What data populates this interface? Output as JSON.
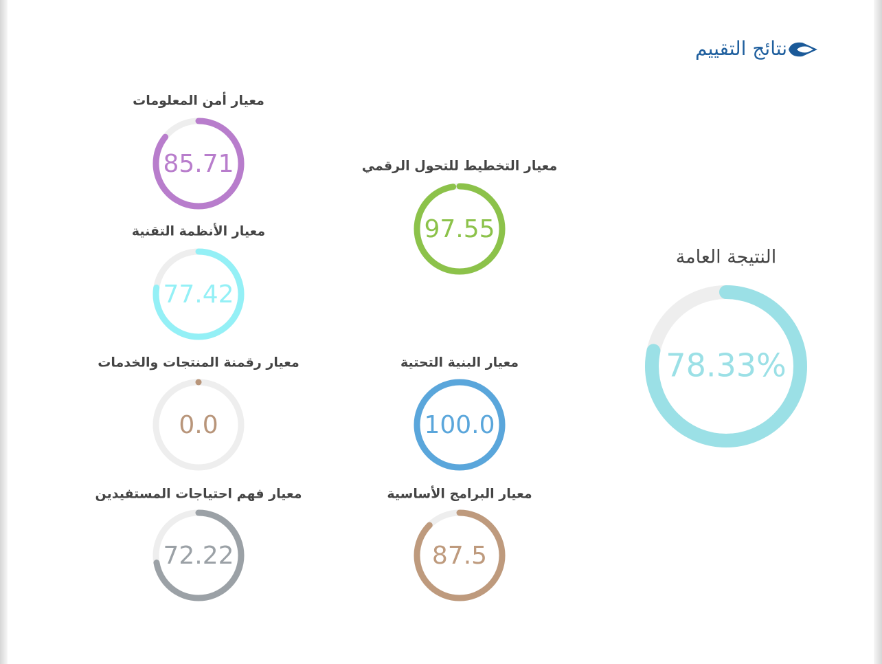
{
  "header": {
    "title": "نتائج التقييم"
  },
  "chart_data": [
    {
      "type": "gauge",
      "title": "معيار أمن المعلومات",
      "values": [
        85.71
      ],
      "color": "#b87dcc",
      "ylim": [
        0,
        100
      ]
    },
    {
      "type": "gauge",
      "title": "معيار الأنظمة التقنية",
      "values": [
        77.42
      ],
      "color": "#94f0f6",
      "ylim": [
        0,
        100
      ]
    },
    {
      "type": "gauge",
      "title": "معيار رقمنة المنتجات والخدمات",
      "values": [
        0
      ],
      "value_labels": [
        "0.0"
      ],
      "color": "#b8957a",
      "ylim": [
        0,
        100
      ]
    },
    {
      "type": "gauge",
      "title": "معيار فهم احتياجات المستفيدين",
      "values": [
        72.22
      ],
      "color": "#9ba1a6",
      "ylim": [
        0,
        100
      ]
    },
    {
      "type": "gauge",
      "title": "معيار التخطيط للتحول الرقمي",
      "values": [
        97.55
      ],
      "color": "#8cc24a",
      "ylim": [
        0,
        100
      ]
    },
    {
      "type": "gauge",
      "title": "معيار البنية التحتية",
      "values": [
        100
      ],
      "value_labels": [
        "100.0"
      ],
      "color": "#5aa6db",
      "ylim": [
        0,
        100
      ]
    },
    {
      "type": "gauge",
      "title": "معيار البرامج الأساسية",
      "values": [
        87.5
      ],
      "color": "#be9a7d",
      "ylim": [
        0,
        100
      ]
    },
    {
      "type": "gauge",
      "title": "النتيجة العامة",
      "values": [
        78.33
      ],
      "value_labels": [
        "78.33%"
      ],
      "color": "#9be0e6",
      "ylim": [
        0,
        100
      ]
    }
  ]
}
